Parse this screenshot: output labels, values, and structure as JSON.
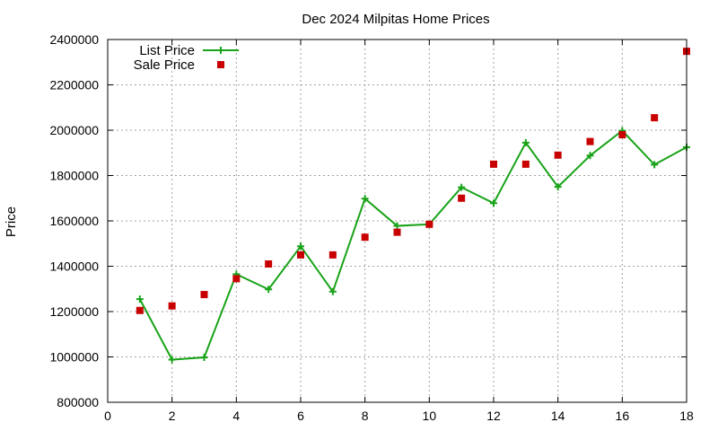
{
  "chart_data": {
    "type": "line",
    "title": "Dec 2024 Milpitas Home Prices",
    "xlabel": "",
    "ylabel": "Price",
    "xlim": [
      0,
      18
    ],
    "ylim": [
      800000,
      2400000
    ],
    "x_ticks": [
      0,
      2,
      4,
      6,
      8,
      10,
      12,
      14,
      16,
      18
    ],
    "y_ticks": [
      800000,
      1000000,
      1200000,
      1400000,
      1600000,
      1800000,
      2000000,
      2200000,
      2400000
    ],
    "grid": true,
    "legend_position": "top-left",
    "series": [
      {
        "name": "List Price",
        "style": "line-with-plus-markers",
        "color": "#19a319",
        "x": [
          1,
          2,
          3,
          4,
          5,
          6,
          7,
          8,
          9,
          10,
          11,
          12,
          13,
          14,
          15,
          16,
          17,
          18
        ],
        "values": [
          1255000,
          988000,
          998000,
          1365000,
          1298000,
          1488000,
          1288000,
          1698000,
          1578000,
          1585000,
          1748000,
          1678000,
          1945000,
          1750000,
          1888000,
          1998000,
          1848000,
          1925000
        ]
      },
      {
        "name": "Sale Price",
        "style": "square-markers",
        "color": "#c80000",
        "x": [
          1,
          2,
          3,
          4,
          5,
          6,
          7,
          8,
          9,
          10,
          11,
          12,
          13,
          14,
          15,
          16,
          17,
          18
        ],
        "values": [
          1205000,
          1225000,
          1275000,
          1345000,
          1410000,
          1450000,
          1450000,
          1528000,
          1550000,
          1585000,
          1700000,
          1850000,
          1850000,
          1890000,
          1950000,
          1980000,
          2055000,
          2348000
        ]
      }
    ]
  }
}
